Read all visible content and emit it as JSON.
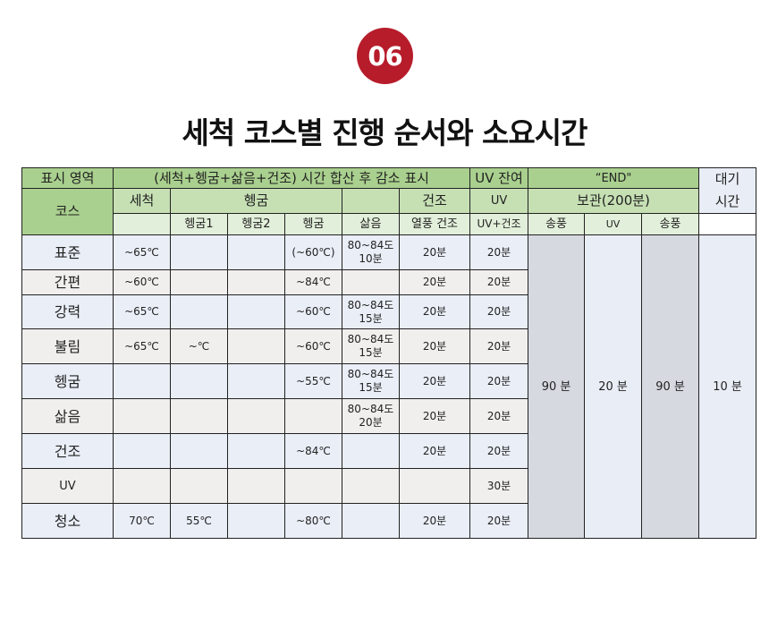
{
  "badge": "06",
  "title": "세척 코스별 진행 순서와 소요시간",
  "header": {
    "display_area": "표시 영역",
    "sum_note": "(세척+헹굼+삶음+건조) 시간 합산 후  감소 표시",
    "uv_remaining": "UV 잔여",
    "end": "“END\"",
    "wait_time_1": "대기",
    "wait_time_2": "시간",
    "course": "코스",
    "wash": "세척",
    "rinse": "헹굼",
    "dry": "건조",
    "uv": "UV",
    "storage": "보관(200분)",
    "sub": [
      "",
      "헹굼1",
      "헹굼2",
      "헹굼",
      "삶음",
      "열풍 건조",
      "UV+건조",
      "송풍",
      "UV",
      "송풍",
      ""
    ]
  },
  "rows": [
    {
      "course": "표준",
      "cells": [
        "~65℃",
        "",
        "",
        "(~60℃)",
        "80~84도\n10분",
        "20분",
        "20분"
      ]
    },
    {
      "course": "간편",
      "cells": [
        "~60℃",
        "",
        "",
        "~84℃",
        "",
        "20분",
        "20분"
      ]
    },
    {
      "course": "강력",
      "cells": [
        "~65℃",
        "",
        "",
        "~60℃",
        "80~84도\n15분",
        "20분",
        "20분"
      ]
    },
    {
      "course": "불림",
      "cells": [
        "~65℃",
        "~℃",
        "",
        "~60℃",
        "80~84도\n15분",
        "20분",
        "20분"
      ]
    },
    {
      "course": "헹굼",
      "cells": [
        "",
        "",
        "",
        "~55℃",
        "80~84도\n15분",
        "20분",
        "20분"
      ]
    },
    {
      "course": "삶음",
      "cells": [
        "",
        "",
        "",
        "",
        "80~84도\n20분",
        "20분",
        "20분"
      ]
    },
    {
      "course": "건조",
      "cells": [
        "",
        "",
        "",
        "~84℃",
        "",
        "20분",
        "20분"
      ]
    },
    {
      "course": "UV",
      "cells": [
        "",
        "",
        "",
        "",
        "",
        "",
        "30분"
      ]
    },
    {
      "course": "청소",
      "cells": [
        "70℃",
        "55℃",
        "",
        "~80℃",
        "",
        "20분",
        "20분"
      ]
    }
  ],
  "storage_times": [
    "90 분",
    "20 분",
    "90 분",
    "10 분"
  ]
}
